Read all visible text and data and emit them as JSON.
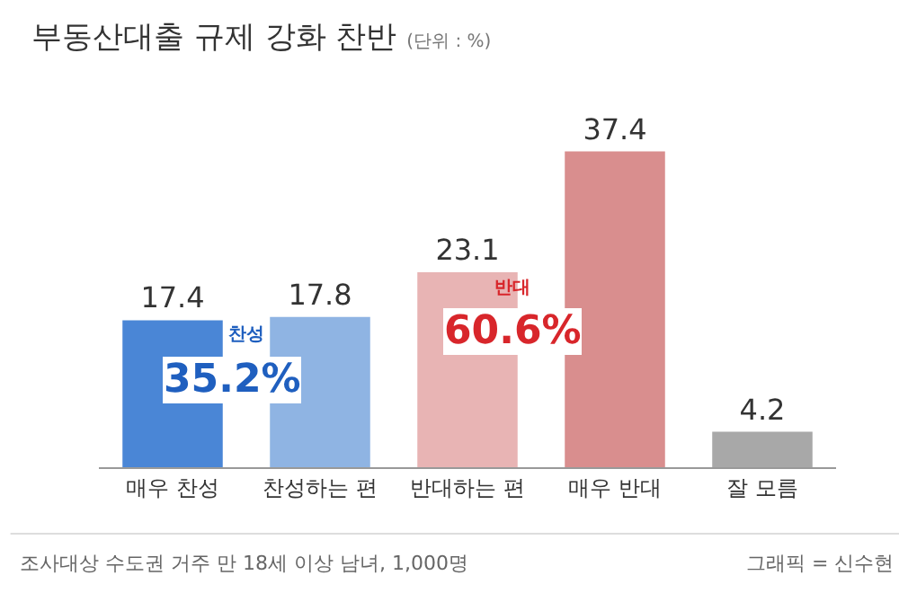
{
  "chart_data": {
    "type": "bar",
    "title": "부동산대출 규제 강화 찬반",
    "subtitle": "(단위 : %)",
    "categories": [
      "매우 찬성",
      "찬성하는 편",
      "반대하는 편",
      "매우 반대",
      "잘 모름"
    ],
    "values": [
      17.4,
      17.8,
      23.1,
      37.4,
      4.2
    ],
    "colors": [
      "#4a86d6",
      "#8fb4e3",
      "#e8b4b4",
      "#d98e8e",
      "#a8a8a8"
    ],
    "data_labels": true,
    "grid": false,
    "legend": false,
    "annotations": [
      "찬성",
      "35.2%",
      "반대",
      "60.6%",
      "조사대상 수도권 거주 만 18세 이상 남녀, 1,000명",
      "그래픽 = 신수현"
    ]
  }
}
